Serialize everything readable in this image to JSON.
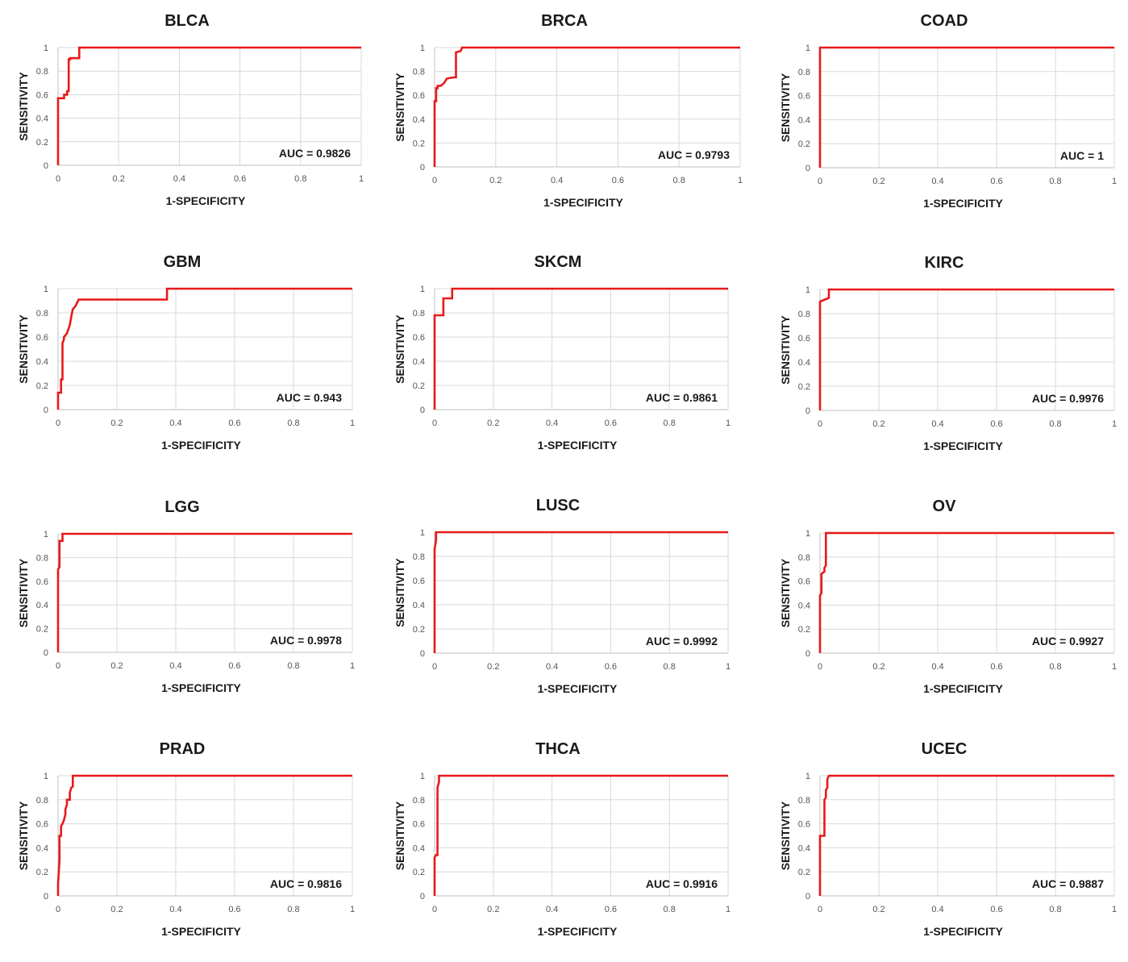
{
  "chart_data": [
    {
      "type": "line",
      "title": "BLCA",
      "xlabel": "1-SPECIFICITY",
      "ylabel": "SENSITIVITY",
      "auc_label": "AUC = 0.9826",
      "xlim": [
        0,
        1
      ],
      "ylim": [
        0,
        1
      ],
      "xticks": [
        "0",
        "0.2",
        "0.4",
        "0.6",
        "0.8",
        "1"
      ],
      "yticks": [
        "0",
        "0.2",
        "0.4",
        "0.6",
        "0.8",
        "1"
      ],
      "grid": true,
      "color": "#e8191a",
      "x": [
        0,
        0,
        0.02,
        0.02,
        0.03,
        0.03,
        0.035,
        0.035,
        0.04,
        0.04,
        0.07,
        0.07,
        1
      ],
      "y": [
        0,
        0.57,
        0.57,
        0.6,
        0.6,
        0.63,
        0.63,
        0.9,
        0.9,
        0.91,
        0.91,
        1,
        1
      ]
    },
    {
      "type": "line",
      "title": "BRCA",
      "xlabel": "1-SPECIFICITY",
      "ylabel": "SENSITIVITY",
      "auc_label": "AUC = 0.9793",
      "xlim": [
        0,
        1
      ],
      "ylim": [
        0,
        1
      ],
      "xticks": [
        "0",
        "0.2",
        "0.4",
        "0.6",
        "0.8",
        "1"
      ],
      "yticks": [
        "0",
        "0.2",
        "0.4",
        "0.6",
        "0.8",
        "1"
      ],
      "grid": true,
      "color": "#e8191a",
      "x": [
        0,
        0,
        0.005,
        0.005,
        0.01,
        0.01,
        0.02,
        0.03,
        0.04,
        0.06,
        0.07,
        0.07,
        0.085,
        0.09,
        1
      ],
      "y": [
        0,
        0.55,
        0.55,
        0.66,
        0.66,
        0.68,
        0.68,
        0.7,
        0.74,
        0.75,
        0.75,
        0.96,
        0.97,
        1,
        1
      ]
    },
    {
      "type": "line",
      "title": "COAD",
      "xlabel": "1-SPECIFICITY",
      "ylabel": "SENSITIVITY",
      "auc_label": "AUC = 1",
      "xlim": [
        0,
        1
      ],
      "ylim": [
        0,
        1
      ],
      "xticks": [
        "0",
        "0.2",
        "0.4",
        "0.6",
        "0.8",
        "1"
      ],
      "yticks": [
        "0",
        "0.2",
        "0.4",
        "0.6",
        "0.8",
        "1"
      ],
      "grid": true,
      "color": "#e8191a",
      "x": [
        0,
        0,
        1
      ],
      "y": [
        0,
        1,
        1
      ]
    },
    {
      "type": "line",
      "title": "GBM",
      "xlabel": "1-SPECIFICITY",
      "ylabel": "SENSITIVITY",
      "auc_label": "AUC = 0.943",
      "xlim": [
        0,
        1
      ],
      "ylim": [
        0,
        1
      ],
      "xticks": [
        "0",
        "0.2",
        "0.4",
        "0.6",
        "0.8",
        "1"
      ],
      "yticks": [
        "0",
        "0.2",
        "0.4",
        "0.6",
        "0.8",
        "1"
      ],
      "grid": true,
      "color": "#e8191a",
      "x": [
        0,
        0,
        0.01,
        0.01,
        0.015,
        0.015,
        0.02,
        0.02,
        0.03,
        0.04,
        0.045,
        0.05,
        0.06,
        0.07,
        0.37,
        0.37,
        1
      ],
      "y": [
        0,
        0.14,
        0.14,
        0.25,
        0.25,
        0.55,
        0.58,
        0.6,
        0.63,
        0.7,
        0.77,
        0.83,
        0.86,
        0.91,
        0.91,
        1,
        1
      ]
    },
    {
      "type": "line",
      "title": "SKCM",
      "xlabel": "1-SPECIFICITY",
      "ylabel": "SENSITIVITY",
      "auc_label": "AUC = 0.9861",
      "xlim": [
        0,
        1
      ],
      "ylim": [
        0,
        1
      ],
      "xticks": [
        "0",
        "0.2",
        "0.4",
        "0.6",
        "0.8",
        "1"
      ],
      "yticks": [
        "0",
        "0.2",
        "0.4",
        "0.6",
        "0.8",
        "1"
      ],
      "grid": true,
      "color": "#e8191a",
      "x": [
        0,
        0,
        0.03,
        0.03,
        0.06,
        0.06,
        1
      ],
      "y": [
        0,
        0.78,
        0.78,
        0.92,
        0.92,
        1,
        1
      ]
    },
    {
      "type": "line",
      "title": "KIRC",
      "xlabel": "1-SPECIFICITY",
      "ylabel": "SENSITIVITY",
      "auc_label": "AUC = 0.9976",
      "xlim": [
        0,
        1
      ],
      "ylim": [
        0,
        1
      ],
      "xticks": [
        "0",
        "0.2",
        "0.4",
        "0.6",
        "0.8",
        "1"
      ],
      "yticks": [
        "0",
        "0.2",
        "0.4",
        "0.6",
        "0.8",
        "1"
      ],
      "grid": true,
      "color": "#e8191a",
      "x": [
        0,
        0,
        0.02,
        0.03,
        0.03,
        1
      ],
      "y": [
        0,
        0.9,
        0.92,
        0.93,
        1,
        1
      ]
    },
    {
      "type": "line",
      "title": "LGG",
      "xlabel": "1-SPECIFICITY",
      "ylabel": "SENSITIVITY",
      "auc_label": "AUC = 0.9978",
      "xlim": [
        0,
        1
      ],
      "ylim": [
        0,
        1
      ],
      "xticks": [
        "0",
        "0.2",
        "0.4",
        "0.6",
        "0.8",
        "1"
      ],
      "yticks": [
        "0",
        "0.2",
        "0.4",
        "0.6",
        "0.8",
        "1"
      ],
      "grid": true,
      "color": "#e8191a",
      "x": [
        0,
        0,
        0.005,
        0.005,
        0.015,
        0.015,
        1
      ],
      "y": [
        0,
        0.7,
        0.72,
        0.94,
        0.94,
        1,
        1
      ]
    },
    {
      "type": "line",
      "title": "LUSC",
      "xlabel": "1-SPECIFICITY",
      "ylabel": "SENSITIVITY",
      "auc_label": "AUC = 0.9992",
      "xlim": [
        0,
        1
      ],
      "ylim": [
        0,
        1
      ],
      "xticks": [
        "0",
        "0.2",
        "0.4",
        "0.6",
        "0.8",
        "1"
      ],
      "yticks": [
        "0",
        "0.2",
        "0.4",
        "0.6",
        "0.8",
        "1"
      ],
      "grid": true,
      "color": "#e8191a",
      "x": [
        0,
        0,
        0.005,
        0.005,
        1
      ],
      "y": [
        0,
        0.86,
        0.93,
        1,
        1
      ]
    },
    {
      "type": "line",
      "title": "OV",
      "xlabel": "1-SPECIFICITY",
      "ylabel": "SENSITIVITY",
      "auc_label": "AUC = 0.9927",
      "xlim": [
        0,
        1
      ],
      "ylim": [
        0,
        1
      ],
      "xticks": [
        "0",
        "0.2",
        "0.4",
        "0.6",
        "0.8",
        "1"
      ],
      "yticks": [
        "0",
        "0.2",
        "0.4",
        "0.6",
        "0.8",
        "1"
      ],
      "grid": true,
      "color": "#e8191a",
      "x": [
        0,
        0,
        0.005,
        0.005,
        0.015,
        0.015,
        0.02,
        0.02,
        1
      ],
      "y": [
        0,
        0.48,
        0.5,
        0.66,
        0.68,
        0.71,
        0.73,
        1,
        1
      ]
    },
    {
      "type": "line",
      "title": "PRAD",
      "xlabel": "1-SPECIFICITY",
      "ylabel": "SENSITIVITY",
      "auc_label": "AUC = 0.9816",
      "xlim": [
        0,
        1
      ],
      "ylim": [
        0,
        1
      ],
      "xticks": [
        "0",
        "0.2",
        "0.4",
        "0.6",
        "0.8",
        "1"
      ],
      "yticks": [
        "0",
        "0.2",
        "0.4",
        "0.6",
        "0.8",
        "1"
      ],
      "grid": true,
      "color": "#e8191a",
      "x": [
        0,
        0,
        0.005,
        0.005,
        0.01,
        0.01,
        0.015,
        0.02,
        0.025,
        0.025,
        0.03,
        0.03,
        0.04,
        0.04,
        0.045,
        0.05,
        0.05,
        1
      ],
      "y": [
        0,
        0.1,
        0.3,
        0.5,
        0.5,
        0.58,
        0.6,
        0.63,
        0.68,
        0.72,
        0.76,
        0.8,
        0.8,
        0.86,
        0.9,
        0.91,
        1,
        1
      ]
    },
    {
      "type": "line",
      "title": "THCA",
      "xlabel": "1-SPECIFICITY",
      "ylabel": "SENSITIVITY",
      "auc_label": "AUC = 0.9916",
      "xlim": [
        0,
        1
      ],
      "ylim": [
        0,
        1
      ],
      "xticks": [
        "0",
        "0.2",
        "0.4",
        "0.6",
        "0.8",
        "1"
      ],
      "yticks": [
        "0",
        "0.2",
        "0.4",
        "0.6",
        "0.8",
        "1"
      ],
      "grid": true,
      "color": "#e8191a",
      "x": [
        0,
        0,
        0.005,
        0.01,
        0.01,
        0.015,
        0.015,
        1
      ],
      "y": [
        0,
        0.32,
        0.34,
        0.34,
        0.9,
        0.95,
        1,
        1
      ]
    },
    {
      "type": "line",
      "title": "UCEC",
      "xlabel": "1-SPECIFICITY",
      "ylabel": "SENSITIVITY",
      "auc_label": "AUC = 0.9887",
      "xlim": [
        0,
        1
      ],
      "ylim": [
        0,
        1
      ],
      "xticks": [
        "0",
        "0.2",
        "0.4",
        "0.6",
        "0.8",
        "1"
      ],
      "yticks": [
        "0",
        "0.2",
        "0.4",
        "0.6",
        "0.8",
        "1"
      ],
      "grid": true,
      "color": "#e8191a",
      "x": [
        0,
        0,
        0.015,
        0.015,
        0.02,
        0.02,
        0.025,
        0.025,
        0.03,
        1
      ],
      "y": [
        0,
        0.5,
        0.5,
        0.8,
        0.82,
        0.88,
        0.9,
        0.97,
        1,
        1
      ]
    }
  ]
}
